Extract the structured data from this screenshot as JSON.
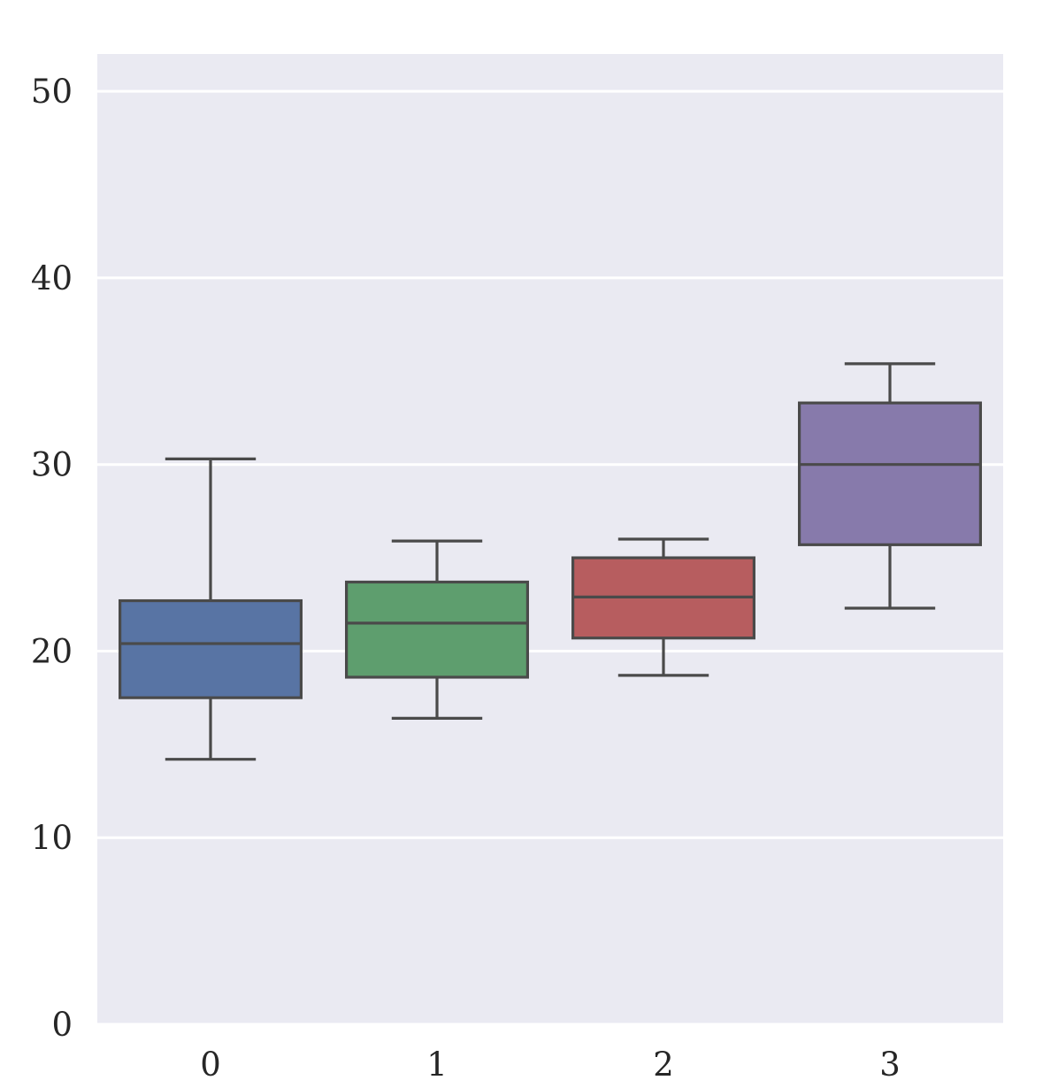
{
  "chart_data": {
    "type": "box",
    "categories": [
      "0",
      "1",
      "2",
      "3"
    ],
    "boxes": [
      {
        "category": "0",
        "whisker_low": 14.2,
        "q1": 17.5,
        "median": 20.4,
        "q3": 22.7,
        "whisker_high": 30.3,
        "color": "#5874a4"
      },
      {
        "category": "1",
        "whisker_low": 16.4,
        "q1": 18.6,
        "median": 21.5,
        "q3": 23.7,
        "whisker_high": 25.9,
        "color": "#5e9e6e"
      },
      {
        "category": "2",
        "whisker_low": 18.7,
        "q1": 20.7,
        "median": 22.9,
        "q3": 25.0,
        "whisker_high": 26.0,
        "color": "#b75d5f"
      },
      {
        "category": "3",
        "whisker_low": 22.3,
        "q1": 25.7,
        "median": 30.0,
        "q3": 33.3,
        "whisker_high": 35.4,
        "color": "#877aab"
      }
    ],
    "yticks": [
      0,
      10,
      20,
      30,
      40,
      50
    ],
    "ylim": [
      0,
      52
    ],
    "title": "",
    "xlabel": "",
    "ylabel": "",
    "grid": true,
    "background_color": "#eaeaf2",
    "line_color": "#4a4a4a"
  }
}
